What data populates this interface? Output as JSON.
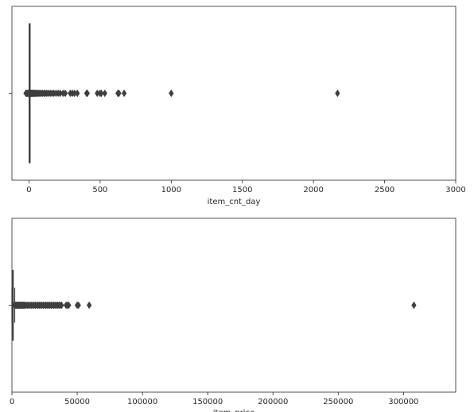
{
  "chart_data": [
    {
      "type": "boxplot",
      "orientation": "horizontal",
      "xlabel": "item_cnt_day",
      "xlim": [
        -120,
        3000
      ],
      "xticks": [
        0,
        500,
        1000,
        1500,
        2000,
        2500,
        3000
      ],
      "xtick_labels": [
        "0",
        "500",
        "1000",
        "1500",
        "2000",
        "2500",
        "3000"
      ],
      "grid": false,
      "whisker_low": 1,
      "q1": 1,
      "median": 1,
      "q3": 1,
      "whisker_high": 1,
      "min": -22,
      "max": 2169,
      "outliers": [
        -22,
        -16,
        -10,
        -6,
        -4,
        -2,
        2,
        3,
        4,
        6,
        8,
        10,
        13,
        16,
        20,
        25,
        30,
        35,
        40,
        46,
        52,
        60,
        68,
        76,
        85,
        95,
        105,
        115,
        125,
        137,
        150,
        162,
        175,
        190,
        205,
        220,
        240,
        255,
        290,
        305,
        320,
        340,
        405,
        410,
        480,
        500,
        508,
        533,
        625,
        632,
        669,
        1000,
        2169
      ],
      "box_color": "#3d6fa8",
      "line_color": "#3f3f3f"
    },
    {
      "type": "boxplot",
      "orientation": "horizontal",
      "xlabel": "item_price",
      "xlim": [
        0,
        340000
      ],
      "xticks": [
        0,
        50000,
        100000,
        150000,
        200000,
        250000,
        300000
      ],
      "xtick_labels": [
        "0",
        "50000",
        "100000",
        "150000",
        "200000",
        "250000",
        "300000"
      ],
      "grid": false,
      "whisker_low": -1,
      "q1": 249,
      "median": 399,
      "q3": 999,
      "whisker_high": 2124,
      "min": -1,
      "max": 307980,
      "outliers": [
        2200,
        2500,
        3000,
        3500,
        4000,
        4500,
        5000,
        5500,
        6000,
        6500,
        7000,
        7500,
        8000,
        8500,
        9000,
        9500,
        10000,
        11000,
        12000,
        13000,
        14000,
        15000,
        16000,
        17000,
        18000,
        19000,
        20000,
        21000,
        22000,
        23000,
        24000,
        25000,
        26000,
        27000,
        28000,
        29000,
        30000,
        31000,
        32000,
        33000,
        34000,
        35000,
        36000,
        37000,
        38000,
        41500,
        42500,
        43500,
        50000,
        51000,
        59200,
        307980
      ],
      "box_color": "#3d6fa8",
      "line_color": "#3f3f3f"
    }
  ]
}
